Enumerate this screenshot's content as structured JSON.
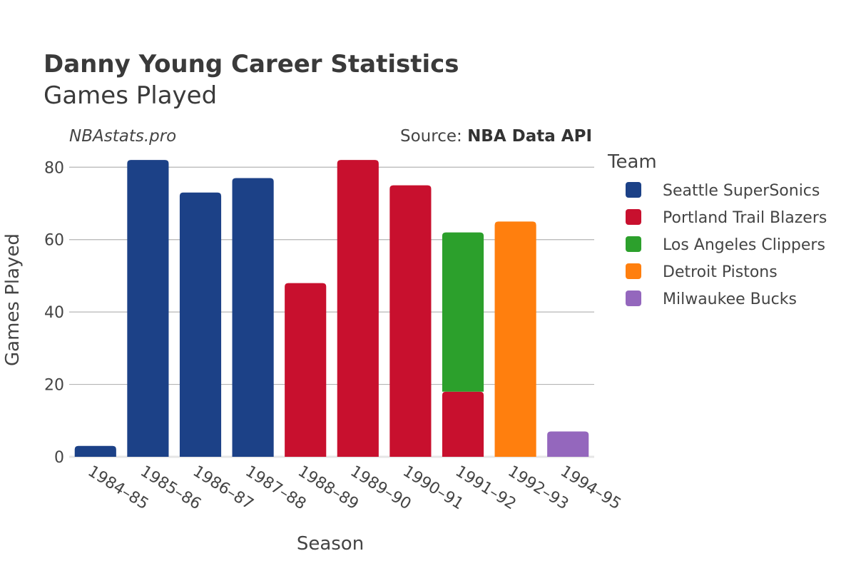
{
  "header": {
    "player_name": "Danny Young",
    "title_suffix": " Career Statistics",
    "subtitle": "Games Played",
    "site": "NBAstats.pro",
    "source_label": "Source: ",
    "source_name": "NBA Data API"
  },
  "chart_data": {
    "type": "bar",
    "stacked": true,
    "xlabel": "Season",
    "ylabel": "Games Played",
    "ylim": [
      0,
      84
    ],
    "yticks": [
      0,
      20,
      40,
      60,
      80
    ],
    "grid": true,
    "legend_title": "Team",
    "legend_position": "right",
    "categories": [
      "1984–85",
      "1985–86",
      "1986–87",
      "1987–88",
      "1988–89",
      "1989–90",
      "1990–91",
      "1991–92",
      "1992–93",
      "1994–95"
    ],
    "series": [
      {
        "name": "Seattle SuperSonics",
        "color": "#1c4187",
        "values": [
          3,
          82,
          73,
          77,
          0,
          0,
          0,
          0,
          0,
          0
        ]
      },
      {
        "name": "Portland Trail Blazers",
        "color": "#c8102e",
        "values": [
          0,
          0,
          0,
          0,
          48,
          82,
          75,
          18,
          0,
          0
        ]
      },
      {
        "name": "Los Angeles Clippers",
        "color": "#2ca02c",
        "values": [
          0,
          0,
          0,
          0,
          0,
          0,
          0,
          44,
          0,
          0
        ]
      },
      {
        "name": "Detroit Pistons",
        "color": "#ff7f0e",
        "values": [
          0,
          0,
          0,
          0,
          0,
          0,
          0,
          0,
          65,
          0
        ]
      },
      {
        "name": "Milwaukee Bucks",
        "color": "#9467bd",
        "values": [
          0,
          0,
          0,
          0,
          0,
          0,
          0,
          0,
          0,
          7
        ]
      }
    ]
  }
}
